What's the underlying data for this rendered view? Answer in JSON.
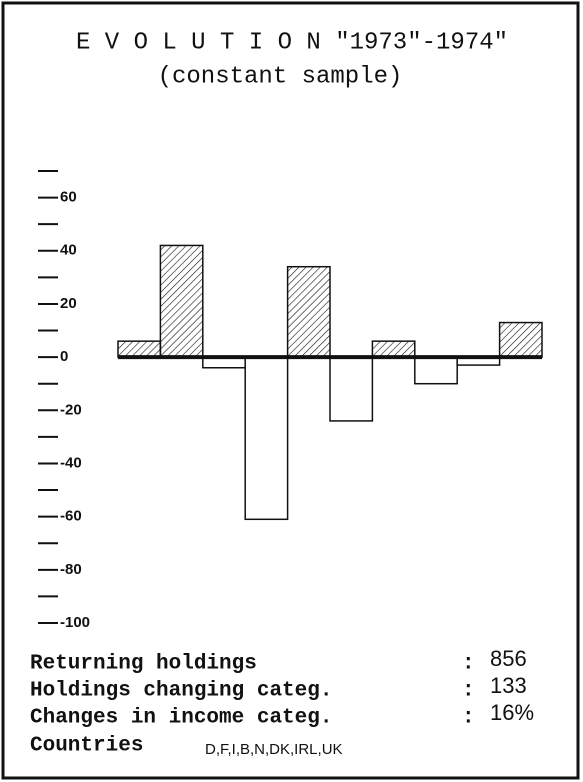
{
  "chart_data": {
    "type": "bar",
    "title": "E V O L U T I O N \"1973\"-1974\"",
    "subtitle": "(constant sample)",
    "categories": [
      null,
      null,
      null,
      null,
      null,
      null,
      null,
      null,
      null,
      null
    ],
    "values": [
      6,
      42,
      -4,
      -61,
      34,
      -24,
      6,
      -10,
      -3,
      13
    ],
    "color": "#111111",
    "ylim": [
      -100,
      70
    ],
    "yticks": [
      60,
      40,
      20,
      0,
      -20,
      -40,
      -60,
      -80,
      -100
    ],
    "minor_yticks": [
      70,
      50,
      30,
      10,
      -10,
      -30,
      -50,
      -70,
      -90
    ],
    "footer": [
      {
        "label": "Returning holdings",
        "sep": ":",
        "value": "856"
      },
      {
        "label": "Holdings changing categ.",
        "sep": ":",
        "value": "133"
      },
      {
        "label": "Changes in income categ.",
        "sep": ":",
        "value": "16%"
      },
      {
        "label": "Countries",
        "value": "D,F,I,B,N,DK,IRL,UK"
      }
    ]
  }
}
